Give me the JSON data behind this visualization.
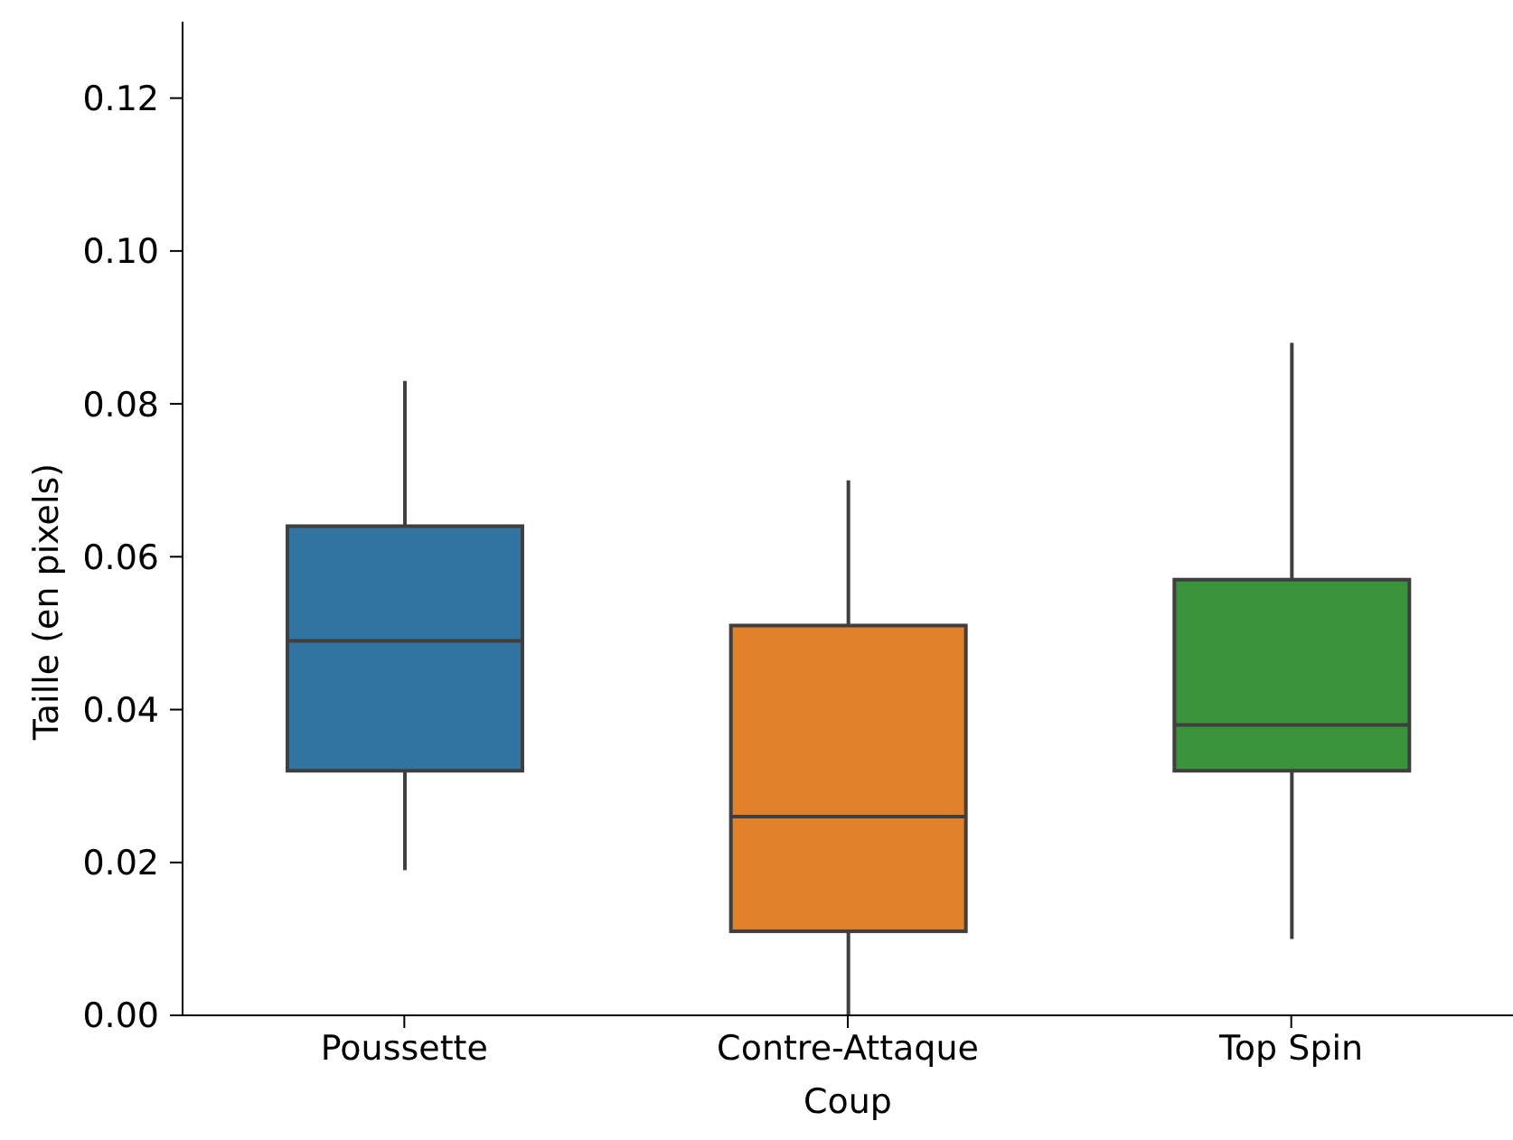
{
  "chart_data": {
    "type": "box",
    "xlabel": "Coup",
    "ylabel": "Taille (en pixels)",
    "categories": [
      "Poussette",
      "Contre-Attaque",
      "Top Spin"
    ],
    "colors": [
      "#3274a1",
      "#e1812c",
      "#3a923a"
    ],
    "boxes": [
      {
        "low": 0.019,
        "q1": 0.032,
        "median": 0.049,
        "q3": 0.064,
        "high": 0.083
      },
      {
        "low": 0,
        "q1": 0.011,
        "median": 0.026,
        "q3": 0.051,
        "high": 0.07
      },
      {
        "low": 0.01,
        "q1": 0.032,
        "median": 0.038,
        "q3": 0.057,
        "high": 0.088
      }
    ],
    "ylim": [
      0,
      0.13
    ],
    "yticks": [
      {
        "value": 0,
        "label": "0.00"
      },
      0.02,
      0.04,
      0.06,
      0.08,
      {
        "value": 0.1,
        "label": "0.10"
      },
      0.12
    ]
  }
}
